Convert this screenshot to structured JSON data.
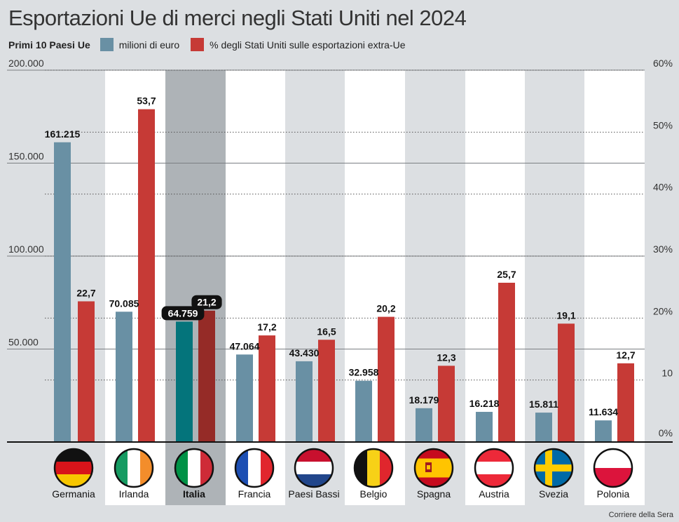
{
  "title": "Esportazioni Ue di merci negli Stati Uniti nel 2024",
  "legend": {
    "title": "Primi 10 Paesi Ue",
    "series1": "milioni di euro",
    "series2": "% degli Stati Uniti sulle esportazioni extra-Ue"
  },
  "source": "Corriere della Sera",
  "colors": {
    "blue": "#6990a4",
    "red": "#c63a36",
    "highlight_blue": "#04747b",
    "highlight_red": "#952b27",
    "highlight_band": "#aeb3b7",
    "white_band": "#ffffff",
    "grey_band": "#dcdfe2"
  },
  "chart_data": {
    "type": "bar",
    "title": "Esportazioni Ue di merci negli Stati Uniti nel 2024",
    "categories": [
      "Germania",
      "Irlanda",
      "Italia",
      "Francia",
      "Paesi Bassi",
      "Belgio",
      "Spagna",
      "Austria",
      "Svezia",
      "Polonia"
    ],
    "highlight": "Italia",
    "series": [
      {
        "name": "milioni di euro",
        "axis": "left",
        "values": [
          161215,
          70085,
          64759,
          47064,
          43430,
          32958,
          18179,
          16218,
          15811,
          11634
        ],
        "labels": [
          "161.215",
          "70.085",
          "64.759",
          "47.064",
          "43.430",
          "32.958",
          "18.179",
          "16.218",
          "15.811",
          "11.634"
        ]
      },
      {
        "name": "% degli Stati Uniti sulle esportazioni extra-Ue",
        "axis": "right",
        "values": [
          22.7,
          53.7,
          21.2,
          17.2,
          16.5,
          20.2,
          12.3,
          25.7,
          19.1,
          12.7
        ],
        "labels": [
          "22,7",
          "53,7",
          "21,2",
          "17,2",
          "16,5",
          "20,2",
          "12,3",
          "25,7",
          "19,1",
          "12,7"
        ]
      }
    ],
    "left_axis": {
      "ylim": [
        0,
        200000
      ],
      "ticks": [
        200000,
        150000,
        100000,
        50000
      ],
      "tick_labels": [
        "200.000",
        "150.000",
        "100.000",
        "50.000"
      ]
    },
    "right_axis": {
      "ylim": [
        0,
        60
      ],
      "ticks": [
        60,
        50,
        40,
        30,
        20,
        10,
        0
      ],
      "tick_labels": [
        "60%",
        "50%",
        "40%",
        "30%",
        "20%",
        "10",
        "0%"
      ]
    }
  }
}
